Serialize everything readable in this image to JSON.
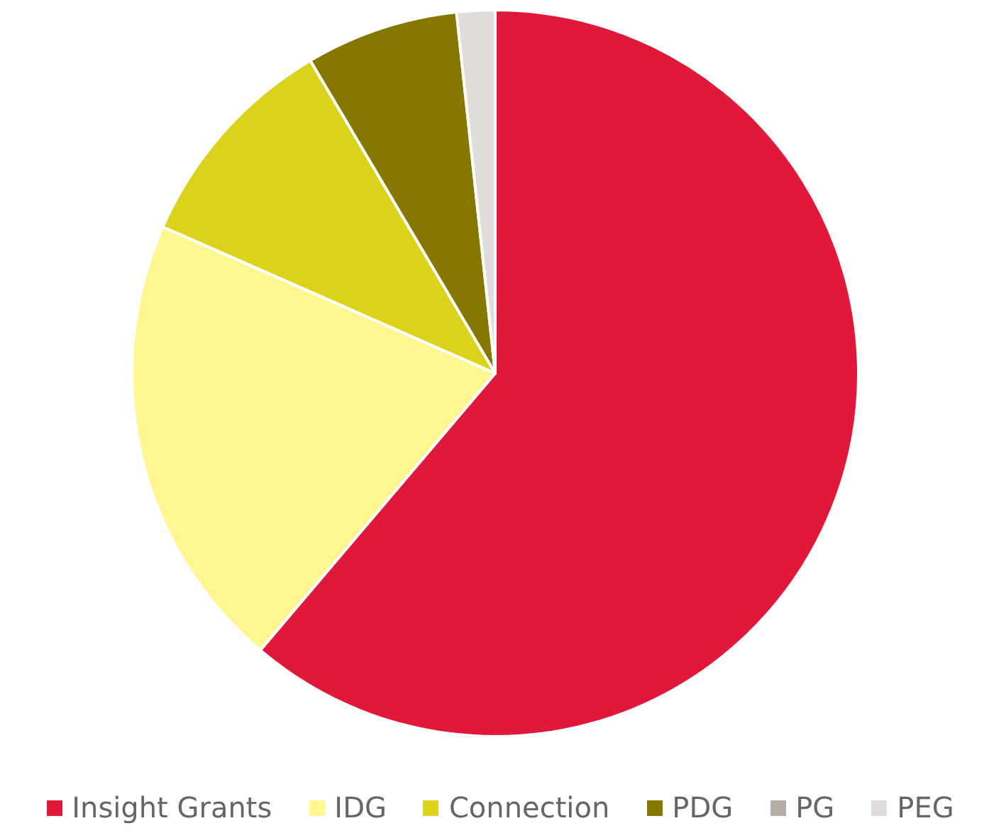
{
  "chart_data": {
    "type": "pie",
    "categories": [
      "Insight Grants",
      "IDG",
      "Connection",
      "PDG",
      "PG",
      "PEG"
    ],
    "values": [
      61.2,
      20.4,
      9.9,
      6.8,
      0,
      1.7
    ],
    "colors": [
      "#e0193a",
      "#fff68f",
      "#dbd21c",
      "#857700",
      "#b5aea9",
      "#e0dcd9"
    ],
    "legend": "bottom"
  }
}
